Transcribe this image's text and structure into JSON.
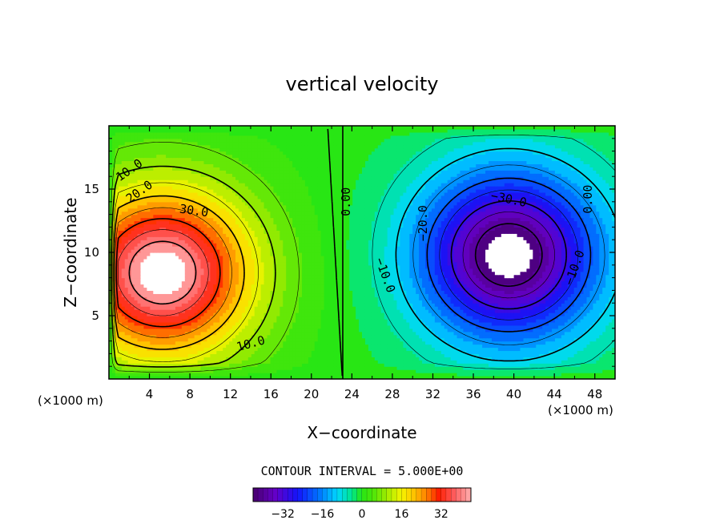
{
  "chart_data": {
    "type": "contour",
    "title": "vertical velocity",
    "xlabel": "X−coordinate",
    "ylabel": "Z−coordinate",
    "x_unit_label": "(×1000 m)",
    "z_unit_label": "(×1000 m)",
    "xlim": [
      0,
      50
    ],
    "ylim": [
      0,
      20
    ],
    "x_ticks": [
      "4",
      "8",
      "12",
      "16",
      "20",
      "24",
      "28",
      "32",
      "36",
      "40",
      "44",
      "48"
    ],
    "x_tick_values": [
      4,
      8,
      12,
      16,
      20,
      24,
      28,
      32,
      36,
      40,
      44,
      48
    ],
    "y_ticks": [
      "5",
      "10",
      "15"
    ],
    "y_tick_values": [
      5,
      10,
      15
    ],
    "contour_interval_label": "CONTOUR INTERVAL = 5.000E+00",
    "contour_interval": 5,
    "contour_labels": [
      {
        "text": "10.0",
        "x": 2.0,
        "z": 16.5,
        "angle": -35
      },
      {
        "text": "20.0",
        "x": 3.0,
        "z": 14.8,
        "angle": -35
      },
      {
        "text": "30.0",
        "x": 8.4,
        "z": 13.3,
        "angle": 8
      },
      {
        "text": "10.0",
        "x": 14.0,
        "z": 2.8,
        "angle": -15
      },
      {
        "text": "0.00",
        "x": 23.4,
        "z": 14.0,
        "angle": -90
      },
      {
        "text": "−30.0",
        "x": 39.5,
        "z": 14.2,
        "angle": 12
      },
      {
        "text": "−20.0",
        "x": 31.0,
        "z": 12.3,
        "angle": -90
      },
      {
        "text": "−10.0",
        "x": 27.3,
        "z": 8.2,
        "angle": 70
      },
      {
        "text": "−10.0",
        "x": 46.0,
        "z": 8.8,
        "angle": -70
      },
      {
        "text": "0.00",
        "x": 47.3,
        "z": 14.2,
        "angle": -90
      }
    ],
    "colorbar": {
      "min": -44,
      "max": 44,
      "tick_labels": [
        "−32",
        "−16",
        "0",
        "16",
        "32"
      ],
      "tick_values": [
        -32,
        -16,
        0,
        16,
        32
      ]
    },
    "extrema": [
      {
        "sign": "positive",
        "x": 5.3,
        "z": 8.4,
        "peak": 44
      },
      {
        "sign": "negative",
        "x": 39.5,
        "z": 9.8,
        "peak": -44
      }
    ]
  }
}
